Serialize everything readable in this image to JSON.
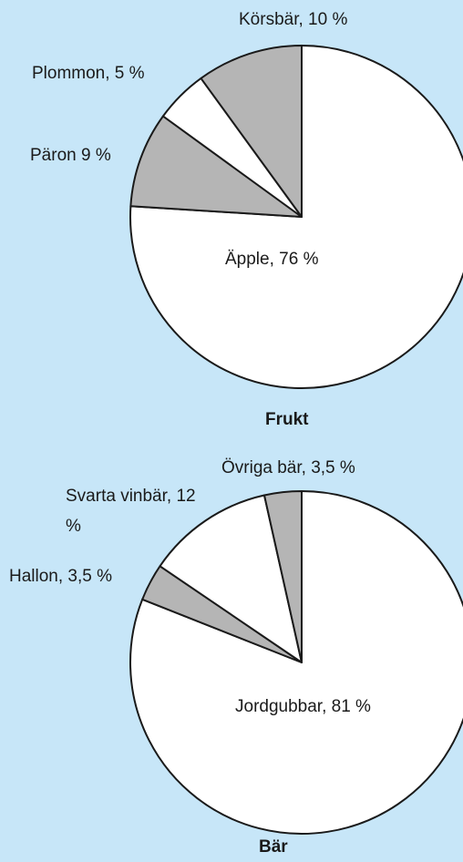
{
  "chart_data": [
    {
      "type": "pie",
      "title": "Frukt",
      "values": [
        76,
        9,
        5,
        10
      ],
      "value_labels": [
        "Äpple, 76 %",
        "Päron 9 %",
        "Plommon, 5 %",
        "Körsbär, 10 %"
      ],
      "colors": [
        "#ffffff",
        "#b5b5b5",
        "#ffffff",
        "#b5b5b5"
      ]
    },
    {
      "type": "pie",
      "title": "Bär",
      "values": [
        81,
        3.5,
        12,
        3.5
      ],
      "value_labels": [
        "Jordgubbar, 81 %",
        "Hallon, 3,5 %",
        "Svarta vinbär, 12 %",
        "Övriga bär, 3,5 %"
      ],
      "colors": [
        "#ffffff",
        "#b5b5b5",
        "#ffffff",
        "#b5b5b5"
      ]
    }
  ]
}
